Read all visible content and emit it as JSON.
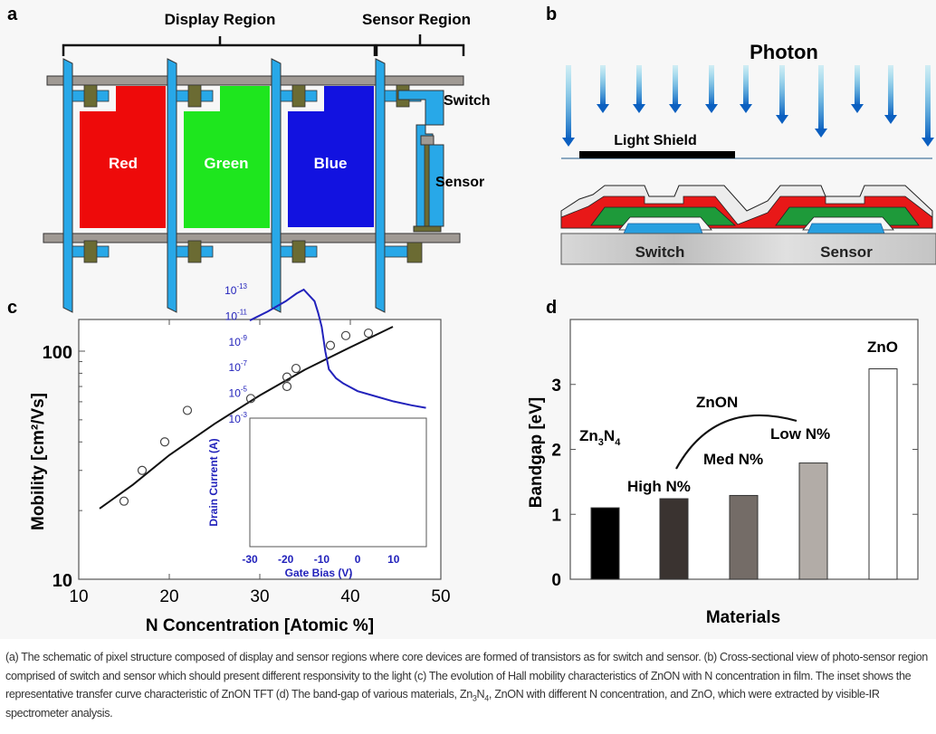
{
  "panel_a": {
    "letter": "a",
    "display_region": "Display Region",
    "sensor_region": "Sensor Region",
    "pixels": [
      {
        "label": "Red",
        "color": "#ee0a0a"
      },
      {
        "label": "Green",
        "color": "#1ee61e"
      },
      {
        "label": "Blue",
        "color": "#1212e0"
      }
    ],
    "switch_label": "Switch",
    "sensor_label": "Sensor"
  },
  "panel_b": {
    "letter": "b",
    "photon": "Photon",
    "light_shield": "Light Shield",
    "switch": "Switch",
    "sensor": "Sensor"
  },
  "chart_data": [
    {
      "panel": "c",
      "type": "scatter",
      "xlabel": "N Concentration [Atomic %]",
      "ylabel": "Mobility [cm²/Vs]",
      "xlim": [
        10,
        50
      ],
      "ylim": [
        10,
        138
      ],
      "yscale": "log",
      "xticks": [
        "10",
        "20",
        "30",
        "40",
        "50"
      ],
      "yticks": [
        "10",
        "100"
      ],
      "points": [
        [
          15,
          22
        ],
        [
          17,
          30
        ],
        [
          19.5,
          40
        ],
        [
          22,
          55
        ],
        [
          29,
          62
        ],
        [
          33,
          70
        ],
        [
          33,
          77
        ],
        [
          34,
          84
        ],
        [
          37.8,
          106
        ],
        [
          39.5,
          117
        ],
        [
          42,
          120
        ]
      ],
      "fit_line": [
        [
          12.3,
          20.4
        ],
        [
          16,
          26
        ],
        [
          20,
          35
        ],
        [
          25,
          48
        ],
        [
          30,
          64
        ],
        [
          35,
          83
        ],
        [
          40,
          104
        ],
        [
          44.7,
          128
        ]
      ],
      "inset": {
        "type": "line",
        "xlabel": "Gate Bias (V)",
        "ylabel": "Drain Current (A)",
        "xlim": [
          -30,
          19
        ],
        "yscale": "log",
        "ylim_exponent": [
          -13,
          -3
        ],
        "xticks": [
          "-30",
          "-20",
          "-10",
          "0",
          "10"
        ],
        "yticks": [
          "10-3",
          "10-5",
          "10-7",
          "10-9",
          "10-11",
          "10-13"
        ],
        "color": "#2222bb",
        "x": [
          -30,
          -25,
          -20,
          -17,
          -15,
          -12,
          -11,
          -10,
          -9,
          -8,
          -6,
          -4,
          0,
          5,
          10,
          15,
          19
        ],
        "log_current": [
          -10.6,
          -11.3,
          -12.1,
          -12.7,
          -13.0,
          -12.1,
          -11.2,
          -10.1,
          -8.2,
          -6.8,
          -6.1,
          -5.7,
          -5.1,
          -4.7,
          -4.3,
          -4.0,
          -3.8
        ]
      }
    },
    {
      "panel": "d",
      "type": "bar",
      "xlabel": "Materials",
      "ylabel": "Bandgap [eV]",
      "ylim": [
        0,
        4
      ],
      "yticks": [
        "0",
        "1",
        "2",
        "3"
      ],
      "categories": [
        "Zn3N4",
        "High N%",
        "Med N%",
        "Low N%",
        "ZnO"
      ],
      "values": [
        1.1,
        1.24,
        1.29,
        1.79,
        3.24
      ],
      "colors": [
        "#000000",
        "#3a3330",
        "#746c67",
        "#b2aca7",
        "#ffffff"
      ],
      "group_label": "ZnON"
    }
  ],
  "panel_c": {
    "letter": "c"
  },
  "panel_d": {
    "letter": "d",
    "zn3n4_main": "Zn",
    "zn3n4_sub1": "3",
    "zn3n4_n": "N",
    "zn3n4_sub2": "4"
  },
  "caption": {
    "part1": "(a) The schematic of pixel structure composed of display and sensor regions where core devices are formed of transistors as for switch and sensor. (b) Cross-sectional view of photo-sensor region comprised of switch and sensor which should present different responsivity to the light (c) The evolution of Hall mobility characteristics of ZnON with N concentration in film. The inset shows the representative transfer curve characteristic of ZnON TFT (d) The band-gap of various materials, Zn",
    "sub1": "3",
    "n": "N",
    "sub2": "4",
    "part2": ", ZnON with different N concentration, and ZnO, which were extracted by visible-IR spectrometer analysis."
  }
}
